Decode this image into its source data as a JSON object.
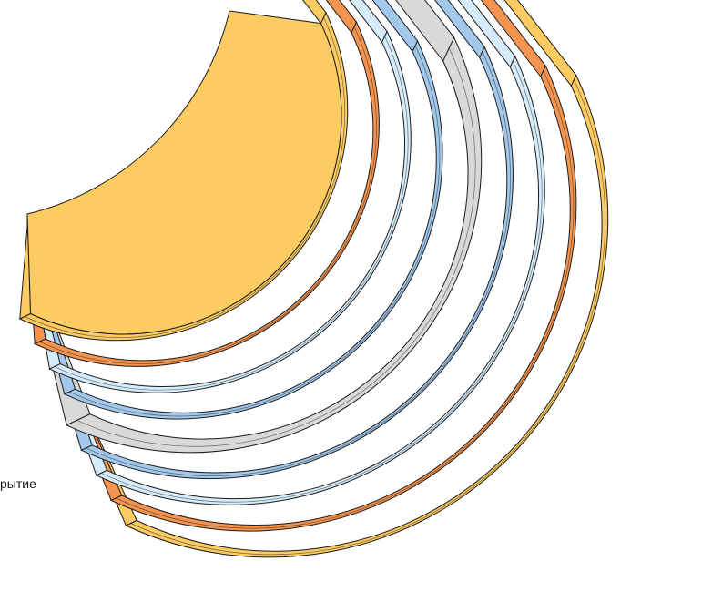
{
  "label": "рытие",
  "layers": [
    {
      "material": "outer-coating",
      "color": "#FCCB62"
    },
    {
      "material": "orange-layer",
      "color": "#F4944F"
    },
    {
      "material": "light-blue-layer",
      "color": "#D6ECFA"
    },
    {
      "material": "blue-layer",
      "color": "#A2C8EC"
    },
    {
      "material": "grey-core",
      "color": "#D9D9D9"
    },
    {
      "material": "blue-layer",
      "color": "#A2C8EC"
    },
    {
      "material": "light-blue-layer",
      "color": "#D6ECFA"
    },
    {
      "material": "orange-layer",
      "color": "#F4944F"
    },
    {
      "material": "inner-coating",
      "color": "#FCCB62"
    }
  ]
}
